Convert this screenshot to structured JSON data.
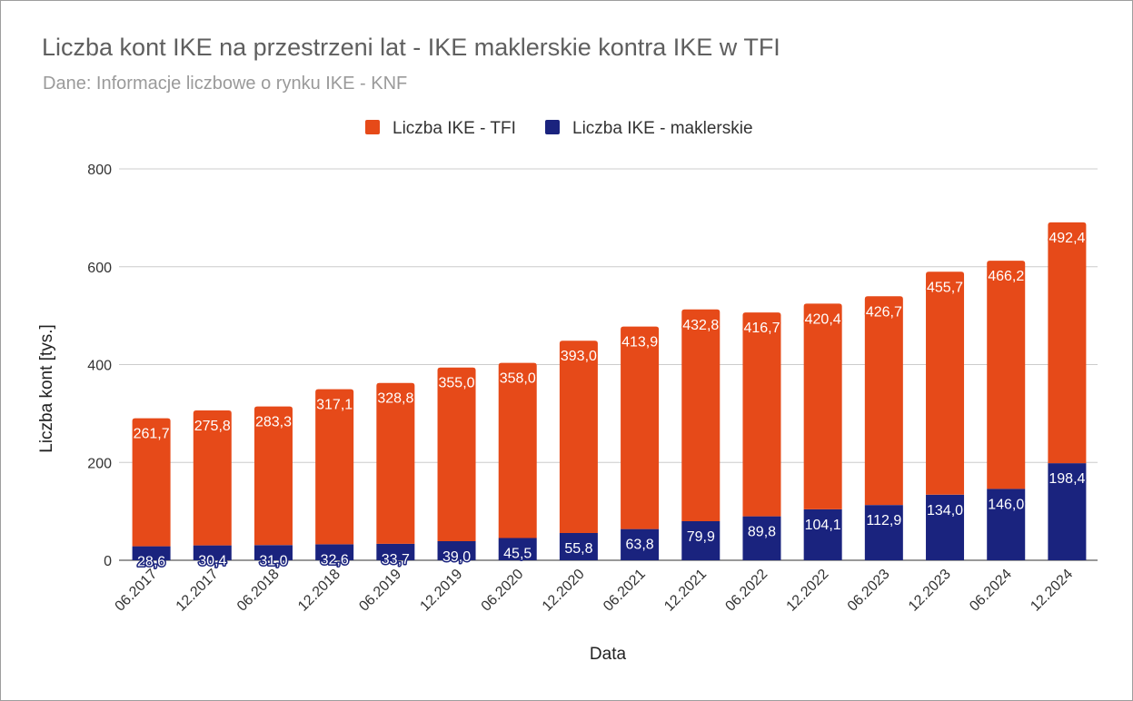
{
  "chart_data": {
    "type": "bar",
    "stacked": true,
    "title": "Liczba kont IKE na przestrzeni lat - IKE maklerskie kontra IKE w TFI",
    "subtitle": "Dane: Informacje liczbowe o rynku IKE - KNF",
    "xlabel": "Data",
    "ylabel": "Liczba kont [tys.]",
    "ylim": [
      0,
      800
    ],
    "yticks": [
      0,
      200,
      400,
      600,
      800
    ],
    "grid": true,
    "legend_position": "top",
    "categories": [
      "06.2017",
      "12.2017",
      "06.2018",
      "12.2018",
      "06.2019",
      "12.2019",
      "06.2020",
      "12.2020",
      "06.2021",
      "12.2021",
      "06.2022",
      "12.2022",
      "06.2023",
      "12.2023",
      "06.2024",
      "12.2024"
    ],
    "series": [
      {
        "name": "Liczba IKE - maklerskie",
        "color": "#1a237e",
        "values": [
          28.6,
          30.4,
          31.0,
          32.6,
          33.7,
          39.0,
          45.5,
          55.8,
          63.8,
          79.9,
          89.8,
          104.1,
          112.9,
          134.0,
          146.0,
          198.4
        ],
        "labels": [
          "28,6",
          "30,4",
          "31,0",
          "32,6",
          "33,7",
          "39,0",
          "45,5",
          "55,8",
          "63,8",
          "79,9",
          "89,8",
          "104,1",
          "112,9",
          "134,0",
          "146,0",
          "198,4"
        ]
      },
      {
        "name": "Liczba IKE - TFI",
        "color": "#e64a19",
        "values": [
          261.7,
          275.8,
          283.3,
          317.1,
          328.8,
          355.0,
          358.0,
          393.0,
          413.9,
          432.8,
          416.7,
          420.4,
          426.7,
          455.7,
          466.2,
          492.4
        ],
        "labels": [
          "261,7",
          "275,8",
          "283,3",
          "317,1",
          "328,8",
          "355,0",
          "358,0",
          "393,0",
          "413,9",
          "432,8",
          "416,7",
          "420,4",
          "426,7",
          "455,7",
          "466,2",
          "492,4"
        ]
      }
    ],
    "legend": [
      {
        "name": "Liczba IKE - TFI",
        "color": "#e64a19"
      },
      {
        "name": "Liczba IKE - maklerskie",
        "color": "#1a237e"
      }
    ]
  }
}
